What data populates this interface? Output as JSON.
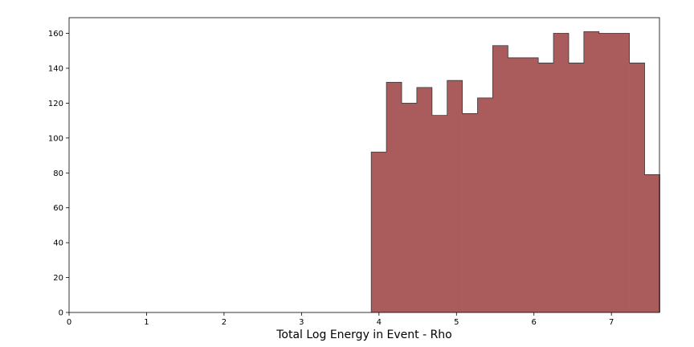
{
  "chart_data": {
    "type": "bar",
    "histogram": true,
    "title": "",
    "xlabel": "Total Log Energy in Event - Rho",
    "ylabel": "",
    "xlim": [
      0,
      7.62
    ],
    "ylim": [
      0,
      169
    ],
    "bin_edges": [
      3.9,
      4.096,
      4.292,
      4.488,
      4.684,
      4.88,
      5.076,
      5.272,
      5.468,
      5.664,
      5.86,
      6.056,
      6.252,
      6.448,
      6.644,
      6.84,
      7.036,
      7.232,
      7.428,
      7.624
    ],
    "values": [
      92,
      132,
      120,
      129,
      113,
      133,
      114,
      123,
      153,
      146,
      146,
      143,
      160,
      143,
      161,
      160,
      160,
      143,
      79
    ],
    "xticks": [
      "0",
      "1",
      "2",
      "3",
      "4",
      "5",
      "6",
      "7"
    ],
    "yticks": [
      "0",
      "20",
      "40",
      "60",
      "80",
      "100",
      "120",
      "140",
      "160"
    ],
    "grid": false,
    "colors": {
      "fill": "#aa5b5b",
      "edge": "#3a3a3a"
    }
  }
}
